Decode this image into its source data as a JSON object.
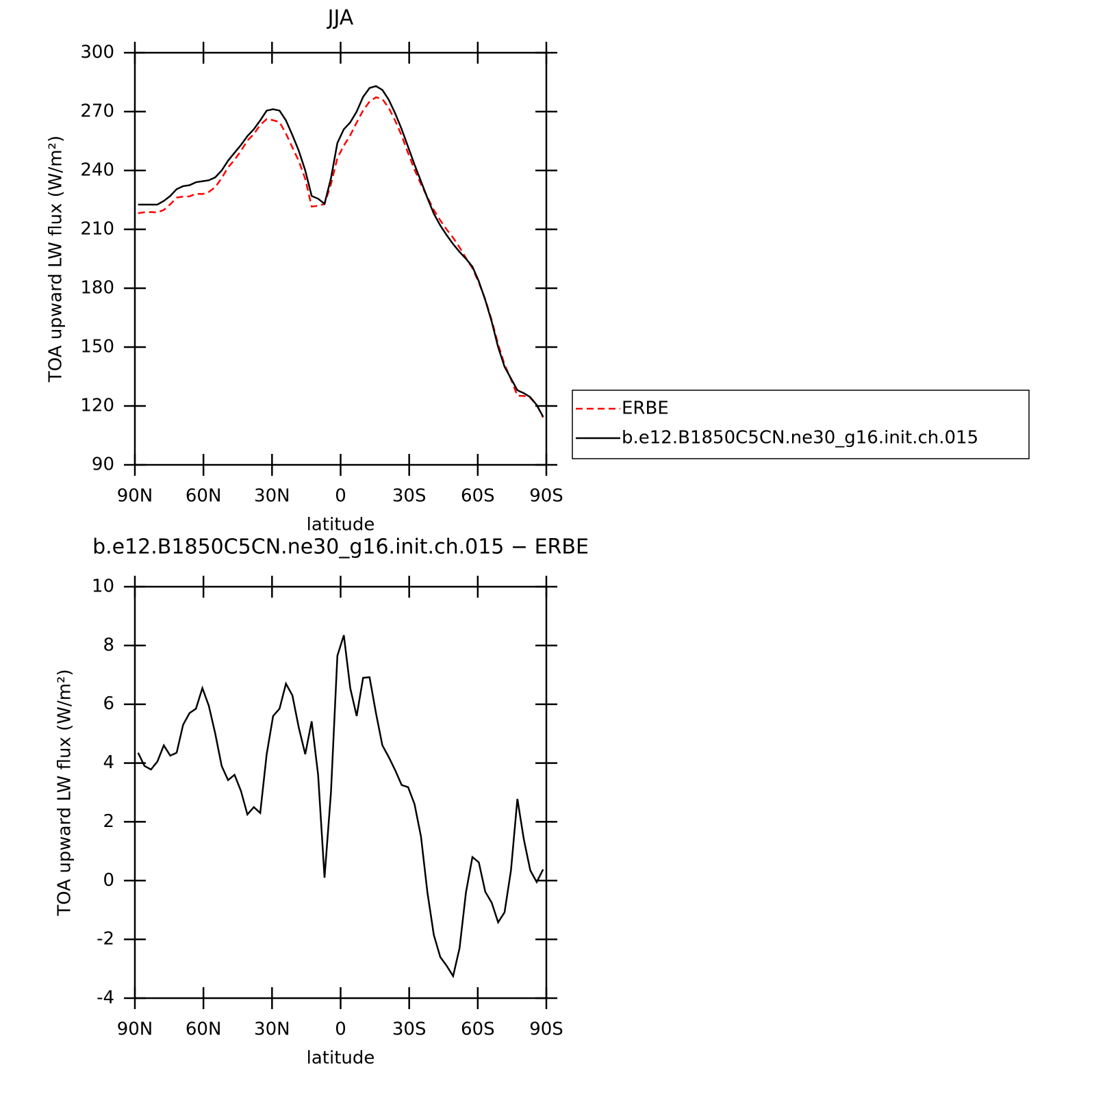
{
  "chart_data": [
    {
      "type": "line",
      "title": "JJA",
      "xlabel": "latitude",
      "ylabel": "TOA upward LW flux (W/m²)",
      "x": [
        88.59,
        85.78,
        82.97,
        80.16,
        77.34,
        74.53,
        71.72,
        68.91,
        66.09,
        63.28,
        60.47,
        57.66,
        54.84,
        52.03,
        49.22,
        46.41,
        43.59,
        40.78,
        37.97,
        35.16,
        32.34,
        29.53,
        26.72,
        23.91,
        21.09,
        18.28,
        15.47,
        12.66,
        9.84,
        7.03,
        4.22,
        1.41,
        -1.41,
        -4.22,
        -7.03,
        -9.84,
        -12.66,
        -15.47,
        -18.28,
        -21.09,
        -23.91,
        -26.72,
        -29.53,
        -32.34,
        -35.16,
        -37.97,
        -40.78,
        -43.59,
        -46.41,
        -49.22,
        -52.03,
        -54.84,
        -57.66,
        -60.47,
        -63.28,
        -66.09,
        -68.91,
        -71.72,
        -74.53,
        -77.34,
        -80.16,
        -82.97,
        -85.78,
        -88.59
      ],
      "xlim": [
        90,
        -90
      ],
      "xticks": [
        {
          "value": 90,
          "label": "90N"
        },
        {
          "value": 60,
          "label": "60N"
        },
        {
          "value": 30,
          "label": "30N"
        },
        0,
        {
          "value": -30,
          "label": "30S"
        },
        {
          "value": -60,
          "label": "60S"
        },
        {
          "value": -90,
          "label": "90S"
        }
      ],
      "ylim": [
        90,
        300
      ],
      "yticks": [
        90,
        120,
        150,
        180,
        210,
        240,
        270,
        300
      ],
      "legend": "right",
      "series": [
        {
          "name": "ERBE",
          "color": "#ff0000",
          "line_style": "dashed",
          "values": [
            218.25,
            218.7,
            218.82,
            218.55,
            219.9,
            222.75,
            226.15,
            226.7,
            226.8,
            228.15,
            227.95,
            229.05,
            231.5,
            236.1,
            241.58,
            245.4,
            249.95,
            255.25,
            258.5,
            263.2,
            266.2,
            265.6,
            264.65,
            258.8,
            251.7,
            244.8,
            235.7,
            221.58,
            222,
            222.9,
            233,
            246.35,
            252.65,
            257.95,
            264.4,
            270.6,
            275.08,
            277.3,
            276.4,
            271.8,
            265.25,
            257.75,
            248.82,
            240.4,
            233,
            226.4,
            219.85,
            214.6,
            209.9,
            205.75,
            200.8,
            195.4,
            190.2,
            182.88,
            174.38,
            163.75,
            151.42,
            141.08,
            133.65,
            125.22,
            125.1,
            124.15,
            120.55,
            114.12
          ]
        },
        {
          "name": "b.e12.B1850C5CN.ne30_g16.init.ch.015",
          "color": "#000000",
          "line_style": "solid",
          "values": [
            222.6,
            222.6,
            222.6,
            222.6,
            224.5,
            227,
            230.5,
            232,
            232.5,
            234,
            234.5,
            235,
            236.5,
            240,
            245,
            249,
            253,
            257.5,
            261,
            265.5,
            270.5,
            271.2,
            270.5,
            265.5,
            258,
            250,
            240,
            227,
            225.6,
            223,
            236,
            254,
            261,
            264.5,
            270,
            277.5,
            282,
            283,
            281,
            276,
            269,
            261,
            252,
            243,
            234.5,
            226,
            218,
            212,
            207,
            202.5,
            198.5,
            195,
            191,
            183.5,
            174,
            163,
            150,
            140,
            134,
            128,
            126.5,
            124.5,
            120.5,
            114.5
          ]
        }
      ]
    },
    {
      "type": "line",
      "title": "b.e12.B1850C5CN.ne30_g16.init.ch.015 − ERBE",
      "xlabel": "latitude",
      "ylabel": "TOA upward LW flux (W/m²)",
      "x": [
        88.59,
        85.78,
        82.97,
        80.16,
        77.34,
        74.53,
        71.72,
        68.91,
        66.09,
        63.28,
        60.47,
        57.66,
        54.84,
        52.03,
        49.22,
        46.41,
        43.59,
        40.78,
        37.97,
        35.16,
        32.34,
        29.53,
        26.72,
        23.91,
        21.09,
        18.28,
        15.47,
        12.66,
        9.84,
        7.03,
        4.22,
        1.41,
        -1.41,
        -4.22,
        -7.03,
        -9.84,
        -12.66,
        -15.47,
        -18.28,
        -21.09,
        -23.91,
        -26.72,
        -29.53,
        -32.34,
        -35.16,
        -37.97,
        -40.78,
        -43.59,
        -46.41,
        -49.22,
        -52.03,
        -54.84,
        -57.66,
        -60.47,
        -63.28,
        -66.09,
        -68.91,
        -71.72,
        -74.53,
        -77.34,
        -80.16,
        -82.97,
        -85.78,
        -88.59
      ],
      "xlim": [
        90,
        -90
      ],
      "xticks": [
        {
          "value": 90,
          "label": "90N"
        },
        {
          "value": 60,
          "label": "60N"
        },
        {
          "value": 30,
          "label": "30N"
        },
        0,
        {
          "value": -30,
          "label": "30S"
        },
        {
          "value": -60,
          "label": "60S"
        },
        {
          "value": -90,
          "label": "90S"
        }
      ],
      "ylim": [
        -4,
        10
      ],
      "yticks": [
        -4,
        -2,
        0,
        2,
        4,
        6,
        8,
        10
      ],
      "series": [
        {
          "color": "#000000",
          "line_style": "solid",
          "values": [
            4.35,
            3.9,
            3.78,
            4.05,
            4.6,
            4.25,
            4.35,
            5.3,
            5.7,
            5.85,
            6.55,
            5.95,
            5.0,
            3.9,
            3.42,
            3.6,
            3.05,
            2.25,
            2.5,
            2.3,
            4.3,
            5.6,
            5.85,
            6.7,
            6.3,
            5.2,
            4.3,
            5.42,
            3.6,
            0.1,
            3.0,
            7.65,
            8.35,
            6.55,
            5.6,
            6.9,
            6.92,
            5.7,
            4.6,
            4.2,
            3.75,
            3.25,
            3.18,
            2.6,
            1.5,
            -0.4,
            -1.85,
            -2.6,
            -2.9,
            -3.25,
            -2.3,
            -0.4,
            0.8,
            0.62,
            -0.38,
            -0.75,
            -1.42,
            -1.08,
            0.35,
            2.78,
            1.4,
            0.35,
            -0.05,
            0.38
          ]
        }
      ]
    }
  ]
}
